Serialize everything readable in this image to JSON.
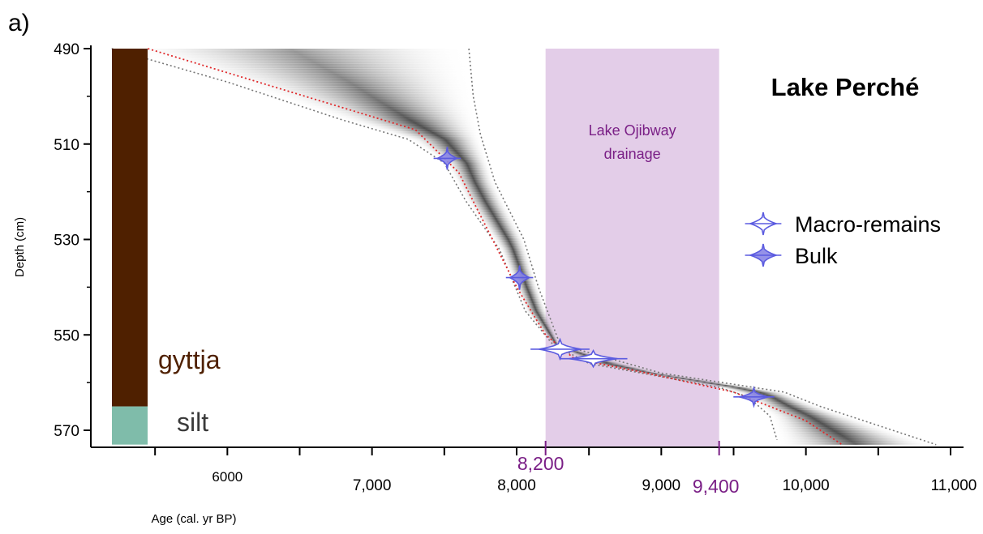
{
  "chart_data": {
    "type": "age-depth",
    "panel_label": "a)",
    "title": "Lake Perché",
    "xlabel": "Age (cal. yr BP)",
    "ylabel": "Depth (cm)",
    "xlim": [
      5000,
      11000
    ],
    "ylim": [
      490,
      573
    ],
    "x_ticks": [
      {
        "value": 6000,
        "label": "6000"
      },
      {
        "value": 7000,
        "label": "7,000"
      },
      {
        "value": 8000,
        "label": "8,000"
      },
      {
        "value": 9000,
        "label": "9,000"
      },
      {
        "value": 10000,
        "label": "10,000"
      },
      {
        "value": 11000,
        "label": "11,000"
      }
    ],
    "x_minor_ticks": [
      5500,
      6500,
      7500,
      8500,
      9500,
      10500
    ],
    "y_ticks": [
      {
        "value": 490,
        "label": "490"
      },
      {
        "value": 510,
        "label": "510"
      },
      {
        "value": 530,
        "label": "530"
      },
      {
        "value": 550,
        "label": "550"
      },
      {
        "value": 570,
        "label": "570"
      }
    ],
    "y_minor_ticks": [
      500,
      520,
      540,
      560
    ],
    "event": {
      "label_line1": "Lake Ojibway",
      "label_line2": "drainage",
      "start": 8200,
      "end": 9400,
      "start_label": "8,200",
      "end_label": "9,400",
      "color": "#e3cde8",
      "text_color": "#7a1f86"
    },
    "lithology": [
      {
        "name": "gyttja",
        "top": 490,
        "bottom": 565,
        "color": "#4f2000",
        "label_color": "#4f2000"
      },
      {
        "name": "silt",
        "top": 565,
        "bottom": 573,
        "color": "#7fbcaa",
        "label_color": "#3a3a3a"
      }
    ],
    "model_median": [
      [
        5450,
        490
      ],
      [
        7300,
        507
      ],
      [
        7600,
        516
      ],
      [
        7800,
        528
      ],
      [
        8000,
        540
      ],
      [
        8200,
        550
      ],
      [
        8400,
        555
      ],
      [
        8900,
        558
      ],
      [
        9500,
        562
      ],
      [
        10000,
        568
      ],
      [
        10250,
        573
      ]
    ],
    "model_range_min": [
      [
        5200,
        490
      ],
      [
        6000,
        497
      ],
      [
        6800,
        505
      ],
      [
        7250,
        509
      ],
      [
        7500,
        514
      ],
      [
        7650,
        522
      ],
      [
        7880,
        532
      ],
      [
        8060,
        545
      ],
      [
        8250,
        552
      ],
      [
        8500,
        556
      ],
      [
        9400,
        561
      ],
      [
        9600,
        563
      ],
      [
        9750,
        567
      ],
      [
        9800,
        572
      ]
    ],
    "model_range_max": [
      [
        7670,
        490
      ],
      [
        7700,
        500
      ],
      [
        7750,
        508
      ],
      [
        7850,
        518
      ],
      [
        8050,
        530
      ],
      [
        8150,
        540
      ],
      [
        8300,
        552
      ],
      [
        9000,
        558
      ],
      [
        9850,
        562
      ],
      [
        10100,
        565
      ],
      [
        10500,
        569
      ],
      [
        10900,
        573
      ]
    ],
    "dates": [
      {
        "type": "Bulk",
        "age": 7520,
        "depth": 513
      },
      {
        "type": "Bulk",
        "age": 8020,
        "depth": 538
      },
      {
        "type": "Macro-remains",
        "age": 8300,
        "depth": 553
      },
      {
        "type": "Macro-remains",
        "age": 8530,
        "depth": 555
      },
      {
        "type": "Bulk",
        "age": 9640,
        "depth": 563
      }
    ],
    "series_colors": {
      "median": "#e0282a",
      "range": "#777777",
      "date": "#5b5be0",
      "bulk_fill": "#8a86e6"
    },
    "legend": {
      "placement": "right",
      "items": [
        {
          "label": "Macro-remains",
          "style": "outline"
        },
        {
          "label": "Bulk",
          "style": "filled"
        }
      ]
    }
  }
}
